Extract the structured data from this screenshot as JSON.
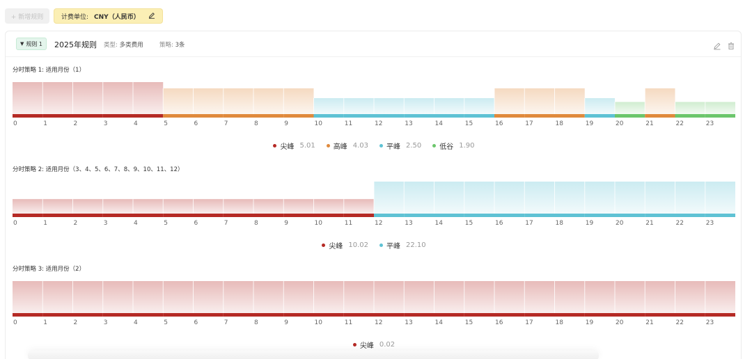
{
  "toolbar": {
    "add_label": "+ 新增规则",
    "unit_prefix": "计费单位:",
    "unit_value": "CNY（人民币）"
  },
  "rule": {
    "tag": "规则 1",
    "title": "2025年规则",
    "type_label": "类型:",
    "type_value": "多类费用",
    "strategy_label": "策略:",
    "strategy_value": "3条"
  },
  "colors": {
    "尖峰": "#b52a25",
    "高峰": "#e08a3c",
    "平峰": "#5ec2d4",
    "低谷": "#6cc66c"
  },
  "hours": [
    "0",
    "1",
    "2",
    "3",
    "4",
    "5",
    "6",
    "7",
    "8",
    "9",
    "10",
    "11",
    "12",
    "13",
    "14",
    "15",
    "16",
    "17",
    "18",
    "19",
    "20",
    "21",
    "22",
    "23"
  ],
  "strategies": [
    {
      "title": "分时策略 1: 适用月份（1）",
      "chart_data": {
        "type": "bar",
        "categories": [
          "0",
          "1",
          "2",
          "3",
          "4",
          "5",
          "6",
          "7",
          "8",
          "9",
          "10",
          "11",
          "12",
          "13",
          "14",
          "15",
          "16",
          "17",
          "18",
          "19",
          "20",
          "21",
          "22",
          "23"
        ],
        "period_by_hour": [
          "尖峰",
          "尖峰",
          "尖峰",
          "尖峰",
          "尖峰",
          "高峰",
          "高峰",
          "高峰",
          "高峰",
          "高峰",
          "平峰",
          "平峰",
          "平峰",
          "平峰",
          "平峰",
          "平峰",
          "高峰",
          "高峰",
          "高峰",
          "平峰",
          "低谷",
          "高峰",
          "低谷",
          "低谷"
        ],
        "values": [
          5.01,
          5.01,
          5.01,
          5.01,
          5.01,
          4.03,
          4.03,
          4.03,
          4.03,
          4.03,
          2.5,
          2.5,
          2.5,
          2.5,
          2.5,
          2.5,
          4.03,
          4.03,
          4.03,
          2.5,
          1.9,
          4.03,
          1.9,
          1.9
        ],
        "legend": [
          {
            "name": "尖峰",
            "value": "5.01"
          },
          {
            "name": "高峰",
            "value": "4.03"
          },
          {
            "name": "平峰",
            "value": "2.50"
          },
          {
            "name": "低谷",
            "value": "1.90"
          }
        ]
      }
    },
    {
      "title": "分时策略 2: 适用月份（3、4、5、6、7、8、9、10、11、12）",
      "chart_data": {
        "type": "bar",
        "categories": [
          "0",
          "1",
          "2",
          "3",
          "4",
          "5",
          "6",
          "7",
          "8",
          "9",
          "10",
          "11",
          "12",
          "13",
          "14",
          "15",
          "16",
          "17",
          "18",
          "19",
          "20",
          "21",
          "22",
          "23"
        ],
        "period_by_hour": [
          "尖峰",
          "尖峰",
          "尖峰",
          "尖峰",
          "尖峰",
          "尖峰",
          "尖峰",
          "尖峰",
          "尖峰",
          "尖峰",
          "尖峰",
          "尖峰",
          "平峰",
          "平峰",
          "平峰",
          "平峰",
          "平峰",
          "平峰",
          "平峰",
          "平峰",
          "平峰",
          "平峰",
          "平峰",
          "平峰"
        ],
        "values": [
          10.02,
          10.02,
          10.02,
          10.02,
          10.02,
          10.02,
          10.02,
          10.02,
          10.02,
          10.02,
          10.02,
          10.02,
          22.1,
          22.1,
          22.1,
          22.1,
          22.1,
          22.1,
          22.1,
          22.1,
          22.1,
          22.1,
          22.1,
          22.1
        ],
        "legend": [
          {
            "name": "尖峰",
            "value": "10.02"
          },
          {
            "name": "平峰",
            "value": "22.10"
          }
        ]
      }
    },
    {
      "title": "分时策略 3: 适用月份（2）",
      "chart_data": {
        "type": "bar",
        "categories": [
          "0",
          "1",
          "2",
          "3",
          "4",
          "5",
          "6",
          "7",
          "8",
          "9",
          "10",
          "11",
          "12",
          "13",
          "14",
          "15",
          "16",
          "17",
          "18",
          "19",
          "20",
          "21",
          "22",
          "23"
        ],
        "period_by_hour": [
          "尖峰",
          "尖峰",
          "尖峰",
          "尖峰",
          "尖峰",
          "尖峰",
          "尖峰",
          "尖峰",
          "尖峰",
          "尖峰",
          "尖峰",
          "尖峰",
          "尖峰",
          "尖峰",
          "尖峰",
          "尖峰",
          "尖峰",
          "尖峰",
          "尖峰",
          "尖峰",
          "尖峰",
          "尖峰",
          "尖峰",
          "尖峰"
        ],
        "values": [
          0.02,
          0.02,
          0.02,
          0.02,
          0.02,
          0.02,
          0.02,
          0.02,
          0.02,
          0.02,
          0.02,
          0.02,
          0.02,
          0.02,
          0.02,
          0.02,
          0.02,
          0.02,
          0.02,
          0.02,
          0.02,
          0.02,
          0.02,
          0.02
        ],
        "legend": [
          {
            "name": "尖峰",
            "value": "0.02"
          }
        ]
      }
    }
  ]
}
